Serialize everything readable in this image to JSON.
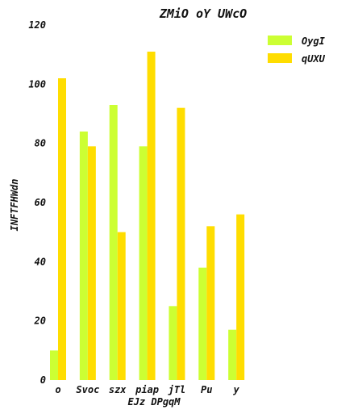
{
  "chart_data": {
    "type": "bar",
    "title": "ZMiO oY UWcO",
    "xlabel": "EJz DPgqM",
    "ylabel": "INFTFHWdn",
    "categories": [
      "o",
      "Svoc",
      "szx",
      "piap",
      "jTl",
      "Pu",
      "y"
    ],
    "ylim": [
      0,
      120
    ],
    "yticks": [
      0,
      20,
      40,
      60,
      80,
      100,
      120
    ],
    "grid": false,
    "legend_position": "top-right",
    "series": [
      {
        "name": "OygI",
        "color": "#ccff33",
        "values": [
          10,
          84,
          93,
          79,
          25,
          38,
          17
        ]
      },
      {
        "name": "qUXU",
        "color": "#ffdd00",
        "values": [
          102,
          79,
          50,
          111,
          92,
          52,
          56
        ]
      }
    ]
  }
}
